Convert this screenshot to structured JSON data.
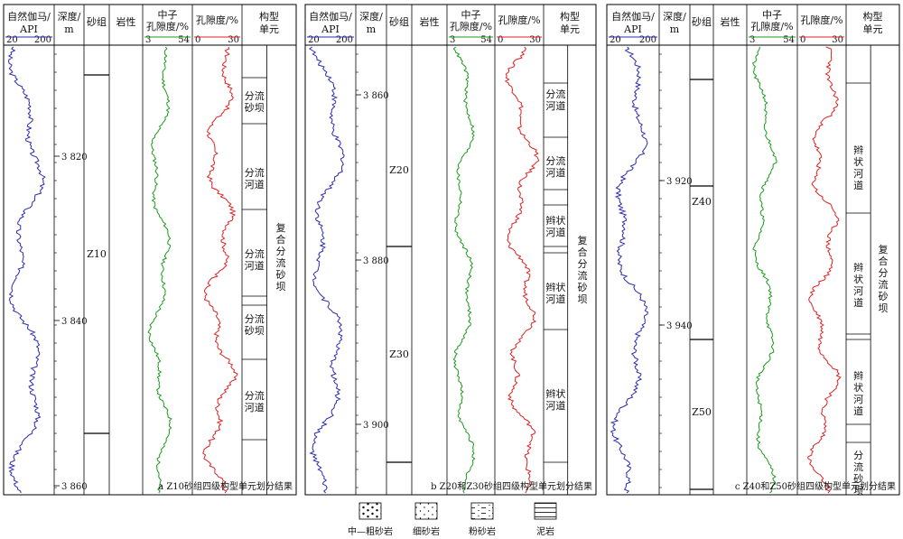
{
  "headers": {
    "gamma": [
      "自然伽马/",
      "API"
    ],
    "gamma_scale": [
      "20",
      "200"
    ],
    "depth": [
      "深度/",
      "m"
    ],
    "sand_group": "砂组",
    "lithology": "岩性",
    "neutron": [
      "中子",
      "孔隙度/%"
    ],
    "neutron_scale": [
      "3",
      "54"
    ],
    "porosity": "孔隙度/%",
    "porosity_scale": [
      "0",
      "30"
    ],
    "unit": [
      "构型",
      "单元"
    ]
  },
  "panels": [
    {
      "caption": "a Z10砂组四级构型单元划分结果",
      "depth_ticks": [
        "3 820",
        "3 840",
        "3 860"
      ],
      "sand_groups": [
        "Z10"
      ],
      "units": [
        {
          "label": [
            "分流",
            "砂坝"
          ]
        },
        {
          "label": [
            "分流",
            "河道"
          ]
        },
        {
          "label": [
            "分流",
            "河道"
          ]
        },
        {
          "label": [
            "分流",
            "砂坝"
          ]
        },
        {
          "label": [
            "分流",
            "河道"
          ]
        }
      ],
      "composite": [
        "复",
        "合",
        "分",
        "流",
        "砂",
        "坝"
      ]
    },
    {
      "caption": "b Z20和Z30砂组四级构型单元划分结果",
      "depth_ticks": [
        "3 860",
        "3 880",
        "3 900"
      ],
      "sand_groups": [
        "Z20",
        "Z30"
      ],
      "units": [
        {
          "label": [
            "分流",
            "河道"
          ]
        },
        {
          "label": [
            "分流",
            "河道"
          ]
        },
        {
          "label": [
            "辫状",
            "河道"
          ]
        },
        {
          "label": [
            "辫状",
            "河道"
          ]
        },
        {
          "label": [
            "辫状",
            "河道"
          ]
        }
      ],
      "composite": [
        "复",
        "合",
        "分",
        "流",
        "砂",
        "坝"
      ]
    },
    {
      "caption": "c Z40和Z50砂组四级构型单元划分结果",
      "depth_ticks": [
        "3 920",
        "3 940"
      ],
      "sand_groups": [
        "Z40",
        "Z50"
      ],
      "units": [
        {
          "label": [
            "辫",
            "状",
            "河",
            "道"
          ]
        },
        {
          "label": [
            "辫",
            "状",
            "河",
            "道"
          ]
        },
        {
          "label": [
            "辫",
            "状",
            "河",
            "道"
          ]
        },
        {
          "label": [
            "分",
            "流",
            "砂",
            "坝"
          ]
        }
      ],
      "composite": [
        "复",
        "合",
        "分",
        "流",
        "砂",
        "坝"
      ]
    }
  ],
  "legend": [
    "中—粗砂岩",
    "细砂岩",
    "粉砂岩",
    "泥岩"
  ],
  "colors": {
    "gamma": "#2b2bb0",
    "neutron": "#1a9a1a",
    "porosity": "#e02020"
  }
}
